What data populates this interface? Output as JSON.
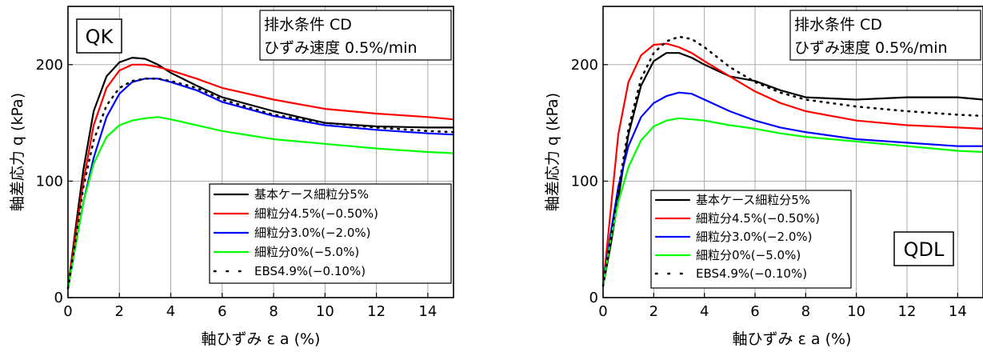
{
  "chart_data": [
    {
      "type": "line",
      "panel_label": "QK",
      "condition_lines": [
        "排水条件  CD",
        "ひずみ速度 0.5%/min"
      ],
      "xlabel": "軸ひずみ ε a (%)",
      "ylabel": "軸差応力 q (kPa)",
      "xlim": [
        0,
        15
      ],
      "ylim": [
        0,
        250
      ],
      "xticks": [
        "0",
        "2",
        "4",
        "6",
        "8",
        "10",
        "12",
        "14"
      ],
      "yticks": [
        "0",
        "100",
        "200"
      ],
      "ytick_values": [
        0,
        100,
        200
      ],
      "xtick_values": [
        0,
        2,
        4,
        6,
        8,
        10,
        12,
        14
      ],
      "grid": true,
      "legend_position": "lower-right",
      "series": [
        {
          "name": "基本ケース細粒分5%",
          "color": "#000000",
          "style": "solid",
          "x": [
            0,
            0.3,
            0.6,
            1.0,
            1.5,
            2.0,
            2.5,
            3.0,
            3.5,
            4.0,
            5.0,
            6.0,
            8.0,
            10.0,
            12.0,
            14.0,
            15.0
          ],
          "y": [
            8,
            60,
            110,
            160,
            190,
            202,
            206,
            205,
            200,
            193,
            182,
            172,
            160,
            150,
            147,
            146,
            146
          ]
        },
        {
          "name": "細粒分4.5%(−0.50%)",
          "color": "#ff0000",
          "style": "solid",
          "x": [
            0,
            0.3,
            0.6,
            1.0,
            1.5,
            2.0,
            2.5,
            3.0,
            3.5,
            4.0,
            5.0,
            6.0,
            8.0,
            10.0,
            12.0,
            14.0,
            15.0
          ],
          "y": [
            8,
            55,
            100,
            148,
            180,
            195,
            200,
            200,
            198,
            195,
            188,
            180,
            170,
            162,
            158,
            155,
            153
          ]
        },
        {
          "name": "細粒分3.0%(−2.0%)",
          "color": "#0000ff",
          "style": "solid",
          "x": [
            0,
            0.3,
            0.6,
            1.0,
            1.5,
            2.0,
            2.5,
            3.0,
            3.5,
            4.0,
            5.0,
            6.0,
            8.0,
            10.0,
            12.0,
            14.0,
            15.0
          ],
          "y": [
            8,
            45,
            82,
            120,
            155,
            175,
            185,
            188,
            188,
            185,
            178,
            168,
            156,
            148,
            144,
            141,
            140
          ]
        },
        {
          "name": "細粒分0%(−5.0%)",
          "color": "#00ff00",
          "style": "solid",
          "x": [
            0,
            0.3,
            0.6,
            1.0,
            1.5,
            2.0,
            2.5,
            3.0,
            3.5,
            4.0,
            5.0,
            6.0,
            8.0,
            10.0,
            12.0,
            14.0,
            15.0
          ],
          "y": [
            8,
            45,
            82,
            115,
            138,
            148,
            152,
            154,
            155,
            153,
            148,
            143,
            136,
            132,
            128,
            125,
            124
          ]
        },
        {
          "name": "EBS4.9%(−0.10%)",
          "color": "#000000",
          "style": "dotted",
          "x": [
            0,
            0.3,
            0.6,
            1.0,
            1.5,
            2.0,
            2.5,
            3.0,
            3.5,
            4.0,
            5.0,
            6.0,
            8.0,
            10.0,
            12.0,
            14.0,
            15.0
          ],
          "y": [
            8,
            50,
            95,
            135,
            165,
            180,
            186,
            188,
            188,
            186,
            180,
            170,
            157,
            150,
            146,
            143,
            142
          ]
        }
      ]
    },
    {
      "type": "line",
      "panel_label": "QDL",
      "condition_lines": [
        "排水条件  CD",
        "ひずみ速度 0.5%/min"
      ],
      "xlabel": "軸ひずみ ε a (%)",
      "ylabel": "軸差応力 q (kPa)",
      "xlim": [
        0,
        15
      ],
      "ylim": [
        0,
        250
      ],
      "xticks": [
        "0",
        "2",
        "4",
        "6",
        "8",
        "10",
        "12",
        "14"
      ],
      "yticks": [
        "0",
        "100",
        "200"
      ],
      "ytick_values": [
        0,
        100,
        200
      ],
      "xtick_values": [
        0,
        2,
        4,
        6,
        8,
        10,
        12,
        14
      ],
      "grid": true,
      "legend_position": "lower-left",
      "series": [
        {
          "name": "基本ケース細粒分5%",
          "color": "#000000",
          "style": "solid",
          "x": [
            0,
            0.3,
            0.6,
            1.0,
            1.5,
            2.0,
            2.5,
            3.0,
            3.5,
            4.0,
            5.0,
            6.0,
            7.0,
            8.0,
            10.0,
            12.0,
            14.0,
            15.0
          ],
          "y": [
            10,
            45,
            85,
            140,
            182,
            203,
            210,
            210,
            206,
            200,
            190,
            186,
            178,
            172,
            170,
            172,
            172,
            170
          ]
        },
        {
          "name": "細粒分4.5%(−0.50%)",
          "color": "#ff0000",
          "style": "solid",
          "x": [
            0,
            0.3,
            0.6,
            1.0,
            1.5,
            2.0,
            2.5,
            3.0,
            3.5,
            4.0,
            5.0,
            6.0,
            7.0,
            8.0,
            10.0,
            12.0,
            14.0,
            15.0
          ],
          "y": [
            10,
            75,
            140,
            185,
            208,
            217,
            218,
            215,
            210,
            203,
            190,
            177,
            167,
            160,
            152,
            148,
            146,
            145
          ]
        },
        {
          "name": "細粒分3.0%(−2.0%)",
          "color": "#0000ff",
          "style": "solid",
          "x": [
            0,
            0.3,
            0.6,
            1.0,
            1.5,
            2.0,
            2.5,
            3.0,
            3.5,
            4.0,
            5.0,
            6.0,
            7.0,
            8.0,
            10.0,
            12.0,
            14.0,
            15.0
          ],
          "y": [
            10,
            55,
            95,
            130,
            155,
            167,
            173,
            176,
            175,
            170,
            160,
            152,
            146,
            142,
            136,
            133,
            130,
            130
          ]
        },
        {
          "name": "細粒分0%(−5.0%)",
          "color": "#00ff00",
          "style": "solid",
          "x": [
            0,
            0.3,
            0.6,
            1.0,
            1.5,
            2.0,
            2.5,
            3.0,
            3.5,
            4.0,
            5.0,
            6.0,
            7.0,
            8.0,
            10.0,
            12.0,
            14.0,
            15.0
          ],
          "y": [
            10,
            50,
            82,
            112,
            135,
            147,
            152,
            154,
            153,
            152,
            148,
            145,
            141,
            138,
            134,
            130,
            126,
            125
          ]
        },
        {
          "name": "EBS4.9%(−0.10%)",
          "color": "#000000",
          "style": "dotted",
          "x": [
            0,
            0.3,
            0.6,
            1.0,
            1.5,
            2.0,
            2.5,
            3.0,
            3.5,
            4.0,
            5.0,
            6.0,
            7.0,
            8.0,
            10.0,
            12.0,
            14.0,
            15.0
          ],
          "y": [
            10,
            50,
            92,
            145,
            188,
            210,
            220,
            224,
            222,
            215,
            198,
            185,
            176,
            170,
            164,
            160,
            157,
            156
          ]
        }
      ]
    }
  ]
}
